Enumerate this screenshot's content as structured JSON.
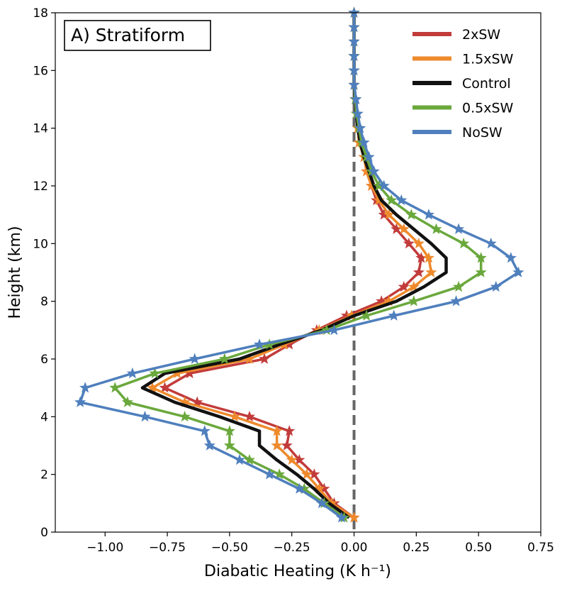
{
  "chart_data": {
    "type": "line",
    "panel_label": "A) Stratiform",
    "xlabel": "Diabatic Heating (K h⁻¹)",
    "ylabel": "Height (km)",
    "xlim": [
      -1.2,
      0.75
    ],
    "ylim": [
      0,
      18
    ],
    "xticks": [
      -1.0,
      -0.75,
      -0.5,
      -0.25,
      0.0,
      0.25,
      0.5,
      0.75
    ],
    "xtick_labels": [
      "−1.00",
      "−0.75",
      "−0.50",
      "−0.25",
      "0.00",
      "0.25",
      "0.50",
      "0.75"
    ],
    "yticks": [
      0,
      2,
      4,
      6,
      8,
      10,
      12,
      14,
      16,
      18
    ],
    "ytick_labels": [
      "0",
      "2",
      "4",
      "6",
      "8",
      "10",
      "12",
      "14",
      "16",
      "18"
    ],
    "zero_line": {
      "x": 0.0,
      "color": "#666666",
      "style": "dashed"
    },
    "legend_position": "top-right",
    "y": [
      0.5,
      1.0,
      1.5,
      2.0,
      2.5,
      3.0,
      3.5,
      4.0,
      4.5,
      5.0,
      5.5,
      6.0,
      6.5,
      7.0,
      7.5,
      8.0,
      8.5,
      9.0,
      9.5,
      10.0,
      10.5,
      11.0,
      11.5,
      12.0,
      12.5,
      13.0,
      13.5,
      14.0,
      14.5,
      15.0,
      15.5,
      16.0,
      16.5,
      17.0,
      17.5,
      18.0
    ],
    "series": [
      {
        "name": "2xSW",
        "color": "#c23b3b",
        "markers": true,
        "values": [
          0.0,
          -0.08,
          -0.12,
          -0.16,
          -0.22,
          -0.27,
          -0.26,
          -0.42,
          -0.63,
          -0.76,
          -0.66,
          -0.36,
          -0.26,
          -0.15,
          -0.03,
          0.11,
          0.2,
          0.26,
          0.27,
          0.22,
          0.17,
          0.12,
          0.09,
          0.07,
          0.05,
          0.04,
          0.02,
          0.015,
          0.01,
          0.005,
          0.0,
          0.0,
          0.0,
          0.0,
          0.0,
          0.0
        ]
      },
      {
        "name": "1.5xSW",
        "color": "#ee8a2c",
        "markers": true,
        "values": [
          0.0,
          -0.09,
          -0.14,
          -0.19,
          -0.25,
          -0.31,
          -0.31,
          -0.48,
          -0.68,
          -0.81,
          -0.71,
          -0.42,
          -0.28,
          -0.14,
          -0.01,
          0.14,
          0.24,
          0.31,
          0.3,
          0.26,
          0.2,
          0.14,
          0.1,
          0.07,
          0.05,
          0.04,
          0.02,
          0.015,
          0.01,
          0.005,
          0.0,
          0.0,
          0.0,
          0.0,
          0.0,
          0.0
        ]
      },
      {
        "name": "Control",
        "color": "#111111",
        "markers": false,
        "values": [
          -0.02,
          -0.1,
          -0.16,
          -0.23,
          -0.31,
          -0.38,
          -0.38,
          -0.54,
          -0.72,
          -0.85,
          -0.76,
          -0.46,
          -0.3,
          -0.13,
          0.0,
          0.17,
          0.28,
          0.37,
          0.37,
          0.31,
          0.24,
          0.17,
          0.11,
          0.08,
          0.06,
          0.04,
          0.025,
          0.015,
          0.01,
          0.005,
          0.0,
          0.0,
          0.0,
          0.0,
          0.0,
          0.0
        ]
      },
      {
        "name": "0.5xSW",
        "color": "#6aa83c",
        "markers": true,
        "values": [
          -0.04,
          -0.12,
          -0.2,
          -0.3,
          -0.42,
          -0.5,
          -0.5,
          -0.68,
          -0.91,
          -0.96,
          -0.8,
          -0.52,
          -0.34,
          -0.11,
          0.05,
          0.24,
          0.42,
          0.51,
          0.51,
          0.44,
          0.33,
          0.23,
          0.15,
          0.1,
          0.07,
          0.05,
          0.03,
          0.02,
          0.01,
          0.005,
          0.0,
          0.0,
          0.0,
          0.0,
          0.0,
          0.0
        ]
      },
      {
        "name": "NoSW",
        "color": "#4f7fbd",
        "markers": true,
        "values": [
          -0.05,
          -0.13,
          -0.22,
          -0.34,
          -0.46,
          -0.58,
          -0.6,
          -0.84,
          -1.1,
          -1.08,
          -0.89,
          -0.64,
          -0.38,
          -0.08,
          0.16,
          0.41,
          0.57,
          0.66,
          0.63,
          0.55,
          0.42,
          0.3,
          0.19,
          0.12,
          0.08,
          0.06,
          0.04,
          0.025,
          0.015,
          0.008,
          0.0,
          0.0,
          0.0,
          0.0,
          0.0,
          0.0
        ]
      }
    ]
  }
}
